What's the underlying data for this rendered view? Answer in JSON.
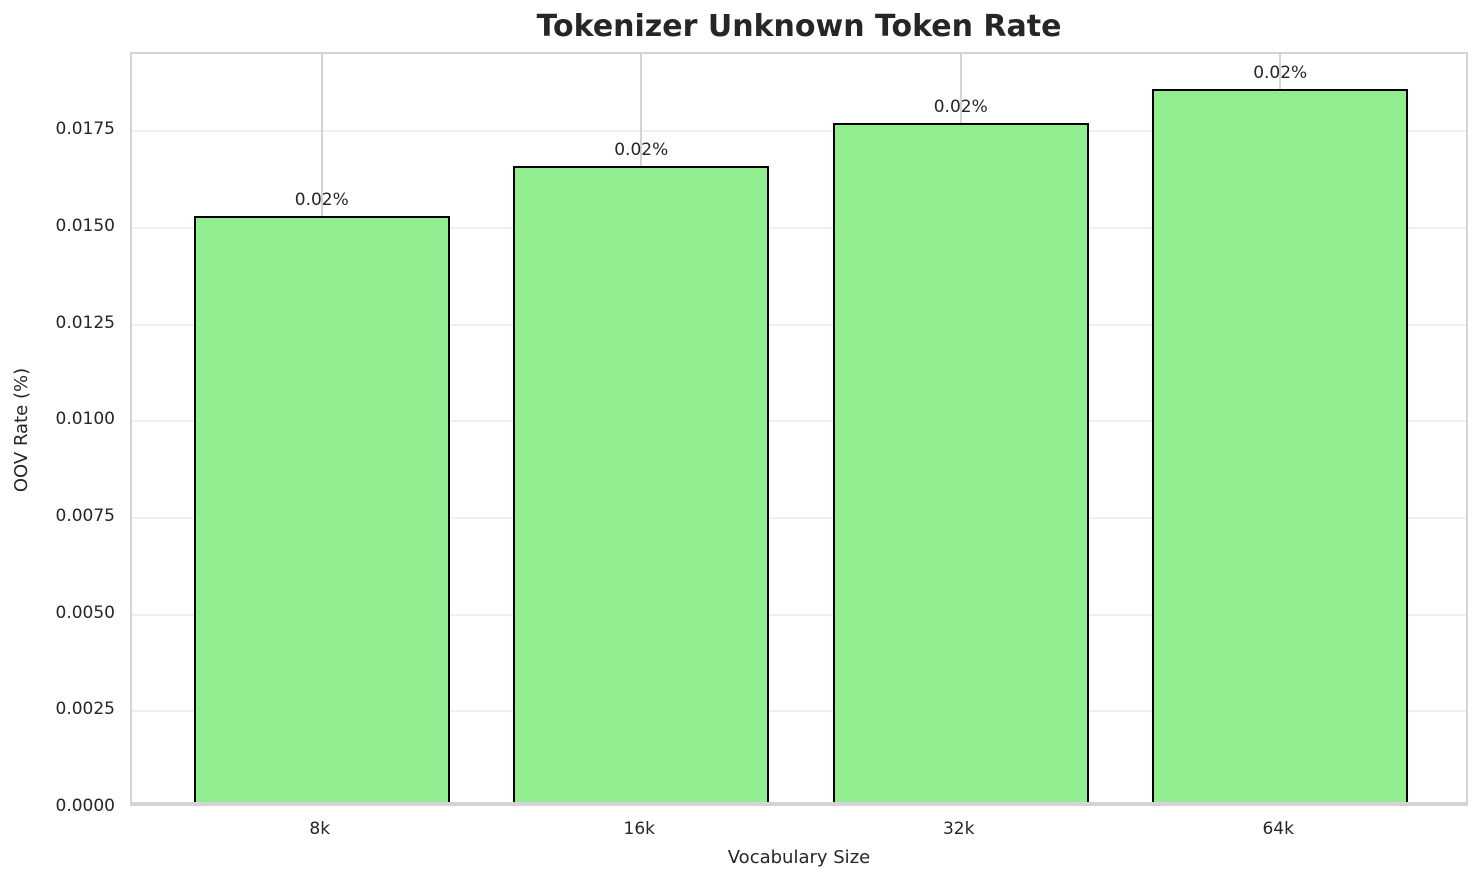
{
  "chart_data": {
    "type": "bar",
    "title": "Tokenizer Unknown Token Rate",
    "xlabel": "Vocabulary Size",
    "ylabel": "OOV Rate (%)",
    "categories": [
      "8k",
      "16k",
      "32k",
      "64k"
    ],
    "values": [
      0.0152,
      0.0165,
      0.0176,
      0.0185
    ],
    "bar_labels": [
      "0.02%",
      "0.02%",
      "0.02%",
      "0.02%"
    ],
    "ylim": [
      0,
      0.0195
    ],
    "yticks": [
      0,
      0.0025,
      0.005,
      0.0075,
      0.01,
      0.0125,
      0.015,
      0.0175
    ],
    "ytick_labels": [
      "0.0000",
      "0.0025",
      "0.0050",
      "0.0075",
      "0.0100",
      "0.0125",
      "0.0150",
      "0.0175"
    ],
    "grid": true,
    "legend": false,
    "colors": {
      "bar_fill": "#90EE90",
      "bar_edge": "#000000",
      "grid_x": "#d4d4d4",
      "grid_y": "#f0f0f0",
      "spine": "#d4d4d4",
      "text": "#262626",
      "background": "#ffffff"
    }
  }
}
